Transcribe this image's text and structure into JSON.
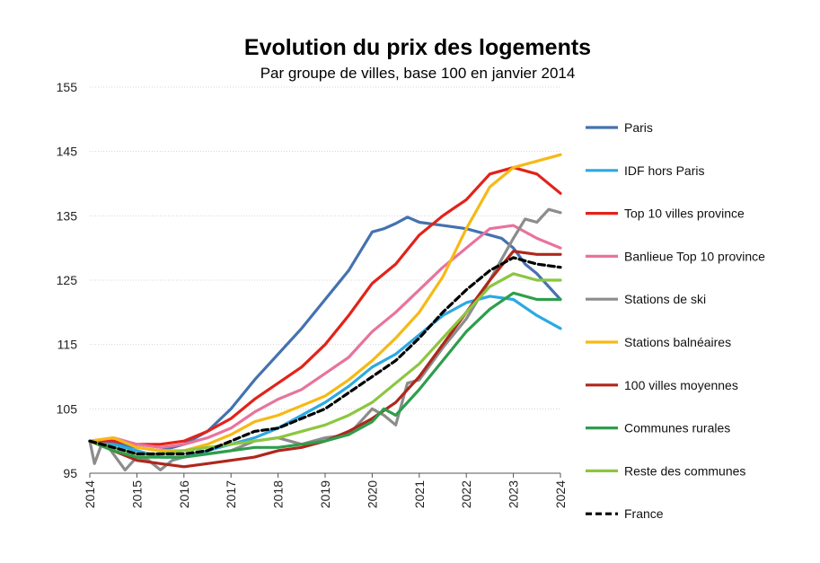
{
  "chart_data": {
    "type": "line",
    "title": "Evolution du prix des logements",
    "subtitle": "Par groupe de villes, base 100 en janvier 2014",
    "xlabel": "",
    "ylabel": "",
    "xlim": [
      2014,
      2024
    ],
    "ylim": [
      95,
      155
    ],
    "yticks": [
      95,
      105,
      115,
      125,
      135,
      145,
      155
    ],
    "xticks": [
      "2014",
      "2015",
      "2016",
      "2017",
      "2018",
      "2019",
      "2020",
      "2021",
      "2022",
      "2023",
      "2024"
    ],
    "grid": true,
    "legend_position": "right",
    "series": [
      {
        "name": "Paris",
        "color": "#4472b0",
        "style": "solid",
        "x": [
          2014,
          2014.5,
          2015,
          2015.5,
          2016,
          2016.5,
          2017,
          2017.5,
          2018,
          2018.5,
          2019,
          2019.5,
          2020,
          2020.25,
          2020.5,
          2020.75,
          2021,
          2021.5,
          2022,
          2022.5,
          2022.75,
          2023,
          2023.25,
          2023.5,
          2024
        ],
        "values": [
          100,
          99.8,
          99,
          98.5,
          99.5,
          101.5,
          105,
          109.5,
          113.5,
          117.5,
          122,
          126.5,
          132.5,
          133,
          133.8,
          134.8,
          134,
          133.5,
          133,
          132,
          131.5,
          130,
          127.5,
          126,
          122
        ]
      },
      {
        "name": "IDF hors Paris",
        "color": "#2ca9e1",
        "style": "solid",
        "x": [
          2014,
          2014.5,
          2015,
          2015.5,
          2016,
          2016.5,
          2017,
          2017.5,
          2018,
          2018.5,
          2019,
          2019.5,
          2020,
          2020.5,
          2021,
          2021.5,
          2022,
          2022.5,
          2023,
          2023.5,
          2024
        ],
        "values": [
          100,
          99.5,
          98.5,
          97.5,
          97.5,
          98.5,
          99.5,
          100.5,
          102,
          104,
          106,
          108.5,
          111.5,
          113.5,
          116.5,
          119.5,
          121.5,
          122.5,
          122,
          119.5,
          117.5
        ]
      },
      {
        "name": "Top 10 villes province",
        "color": "#e2231a",
        "style": "solid",
        "x": [
          2014,
          2014.5,
          2015,
          2015.5,
          2016,
          2016.5,
          2017,
          2017.5,
          2018,
          2018.5,
          2019,
          2019.5,
          2020,
          2020.5,
          2021,
          2021.5,
          2022,
          2022.5,
          2023,
          2023.5,
          2024
        ],
        "values": [
          100,
          100,
          99.5,
          99.5,
          100,
          101.5,
          103.5,
          106.5,
          109,
          111.5,
          115,
          119.5,
          124.5,
          127.5,
          132,
          135,
          137.5,
          141.5,
          142.5,
          141.5,
          138.5
        ]
      },
      {
        "name": "Banlieue Top 10 province",
        "color": "#e8739c",
        "style": "solid",
        "x": [
          2014,
          2014.5,
          2015,
          2015.5,
          2016,
          2016.5,
          2017,
          2017.5,
          2018,
          2018.5,
          2019,
          2019.5,
          2020,
          2020.5,
          2021,
          2021.5,
          2022,
          2022.5,
          2023,
          2023.5,
          2024
        ],
        "values": [
          100,
          100.5,
          99.5,
          99,
          99.5,
          100.5,
          102,
          104.5,
          106.5,
          108,
          110.5,
          113,
          117,
          120,
          123.5,
          127,
          130,
          133,
          133.5,
          131.5,
          130
        ]
      },
      {
        "name": "Stations de ski",
        "color": "#8c8c8c",
        "style": "solid",
        "x": [
          2014,
          2014.1,
          2014.25,
          2014.4,
          2014.6,
          2014.75,
          2015,
          2015.25,
          2015.5,
          2015.75,
          2016,
          2016.5,
          2017,
          2017.5,
          2018,
          2018.5,
          2019,
          2019.5,
          2019.75,
          2020,
          2020.25,
          2020.5,
          2020.75,
          2021,
          2021.5,
          2022,
          2022.5,
          2023,
          2023.25,
          2023.5,
          2023.75,
          2024
        ],
        "values": [
          100,
          96.5,
          99.5,
          99,
          97,
          95.5,
          97.5,
          97,
          95.5,
          97,
          97.5,
          98,
          98.5,
          100,
          100.5,
          99.5,
          100.5,
          101,
          103,
          105,
          104,
          102.5,
          109,
          109.5,
          114.5,
          119,
          125,
          131.5,
          134.5,
          134,
          136,
          135.5
        ]
      },
      {
        "name": "Stations balnéaires",
        "color": "#f6b915",
        "style": "solid",
        "x": [
          2014,
          2014.5,
          2015,
          2015.5,
          2016,
          2016.5,
          2017,
          2017.5,
          2018,
          2018.5,
          2019,
          2019.5,
          2020,
          2020.5,
          2021,
          2021.5,
          2022,
          2022.5,
          2023,
          2023.5,
          2024
        ],
        "values": [
          100,
          100.5,
          99,
          98.5,
          98.5,
          99.5,
          101,
          103,
          104,
          105.5,
          107,
          109.5,
          112.5,
          116,
          120,
          125.5,
          133,
          139.5,
          142.5,
          143.5,
          144.5
        ]
      },
      {
        "name": "100 villes moyennes",
        "color": "#b0261c",
        "style": "solid",
        "x": [
          2014,
          2014.5,
          2015,
          2015.5,
          2016,
          2016.5,
          2017,
          2017.5,
          2018,
          2018.5,
          2019,
          2019.5,
          2020,
          2020.5,
          2021,
          2021.5,
          2022,
          2022.5,
          2023,
          2023.5,
          2024
        ],
        "values": [
          100,
          98.5,
          97,
          96.5,
          96,
          96.5,
          97,
          97.5,
          98.5,
          99,
          100,
          101.5,
          103.5,
          106,
          110,
          115,
          120,
          125,
          129.5,
          129,
          129
        ]
      },
      {
        "name": "Communes rurales",
        "color": "#2e9e4c",
        "style": "solid",
        "x": [
          2014,
          2014.5,
          2015,
          2015.5,
          2016,
          2016.5,
          2017,
          2017.5,
          2018,
          2018.5,
          2019,
          2019.5,
          2020,
          2020.25,
          2020.5,
          2021,
          2021.5,
          2022,
          2022.5,
          2023,
          2023.5,
          2024
        ],
        "values": [
          100,
          98.5,
          97.5,
          97.5,
          97.5,
          98,
          98.5,
          99,
          99,
          99.5,
          100,
          101,
          103,
          105,
          104,
          108,
          112.5,
          117,
          120.5,
          123,
          122,
          122
        ]
      },
      {
        "name": "Reste des communes",
        "color": "#8cc63f",
        "style": "solid",
        "x": [
          2014,
          2014.5,
          2015,
          2015.5,
          2016,
          2016.5,
          2017,
          2017.5,
          2018,
          2018.5,
          2019,
          2019.5,
          2020,
          2020.5,
          2021,
          2021.5,
          2022,
          2022.5,
          2023,
          2023.5,
          2024
        ],
        "values": [
          100,
          99,
          98,
          98,
          98.5,
          99,
          99.5,
          100,
          100.5,
          101.5,
          102.5,
          104,
          106,
          109,
          112,
          116,
          120,
          124,
          126,
          125,
          125
        ]
      },
      {
        "name": "France",
        "color": "#000000",
        "style": "dashed",
        "x": [
          2014,
          2014.5,
          2015,
          2015.5,
          2016,
          2016.5,
          2017,
          2017.5,
          2018,
          2018.5,
          2019,
          2019.5,
          2020,
          2020.5,
          2021,
          2021.5,
          2022,
          2022.5,
          2023,
          2023.5,
          2024
        ],
        "values": [
          100,
          99,
          98,
          98,
          98,
          98.5,
          100,
          101.5,
          102,
          103.5,
          105,
          107.5,
          110,
          112.5,
          116,
          120,
          123.5,
          126.5,
          128.5,
          127.5,
          127
        ]
      }
    ]
  }
}
